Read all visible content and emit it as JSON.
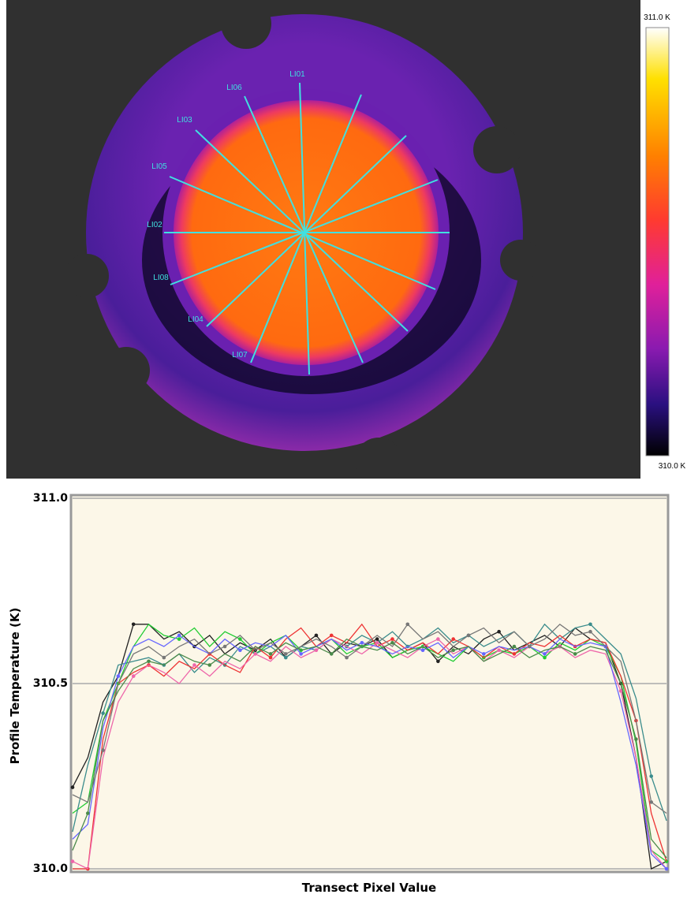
{
  "image": {
    "colorbar": {
      "max_label": "311.0 K",
      "min_label": "310.0 K"
    },
    "transect_labels": [
      "LI01",
      "LI06",
      "LI03",
      "LI05",
      "LI02",
      "LI08",
      "LI04",
      "LI07"
    ]
  },
  "chart_data": {
    "type": "line",
    "y_label": "Profile Temperature (K)",
    "x_label": "Transect Pixel Value",
    "ylim": [
      310.0,
      311.0
    ],
    "yticks": [
      {
        "value": 310.0,
        "label": "310.0"
      },
      310.5,
      {
        "value": 311.0,
        "label": "311.0"
      }
    ],
    "series": [
      {
        "color": "#222222",
        "values": [
          310.22,
          310.3,
          310.45,
          310.52,
          310.66,
          310.66,
          310.62,
          310.64,
          310.6,
          310.63,
          310.58,
          310.61,
          310.59,
          310.62,
          310.57,
          310.6,
          310.63,
          310.58,
          310.61,
          310.6,
          310.62,
          310.57,
          310.59,
          310.61,
          310.56,
          310.6,
          310.58,
          310.62,
          310.64,
          310.59,
          310.61,
          310.63,
          310.6,
          310.65,
          310.62,
          310.61,
          310.5,
          310.3,
          310.0,
          310.02
        ]
      },
      {
        "color": "#22cc33",
        "values": [
          310.15,
          310.18,
          310.4,
          310.5,
          310.6,
          310.66,
          310.63,
          310.62,
          310.65,
          310.6,
          310.64,
          310.62,
          310.58,
          310.61,
          310.63,
          310.59,
          310.6,
          310.62,
          310.58,
          310.6,
          310.61,
          310.57,
          310.59,
          310.6,
          310.58,
          310.56,
          310.6,
          310.57,
          310.59,
          310.58,
          310.6,
          310.57,
          310.61,
          310.59,
          310.62,
          310.6,
          310.52,
          310.34,
          310.05,
          310.02
        ]
      },
      {
        "color": "#3a8c8c",
        "values": [
          310.1,
          310.28,
          310.42,
          310.55,
          310.56,
          310.57,
          310.55,
          310.58,
          310.53,
          310.57,
          310.55,
          310.6,
          310.58,
          310.6,
          310.57,
          310.6,
          310.59,
          310.62,
          310.6,
          310.63,
          310.61,
          310.64,
          310.6,
          310.62,
          310.65,
          310.61,
          310.63,
          310.6,
          310.62,
          310.64,
          310.6,
          310.66,
          310.62,
          310.65,
          310.66,
          310.62,
          310.58,
          310.46,
          310.25,
          310.13
        ]
      },
      {
        "color": "#ee3333",
        "values": [
          310.0,
          310.0,
          310.35,
          310.5,
          310.53,
          310.55,
          310.52,
          310.56,
          310.54,
          310.58,
          310.55,
          310.53,
          310.6,
          310.57,
          310.62,
          310.65,
          310.6,
          310.63,
          310.61,
          310.66,
          310.6,
          310.62,
          310.59,
          310.61,
          310.58,
          310.62,
          310.6,
          310.57,
          310.6,
          310.58,
          310.61,
          310.6,
          310.63,
          310.6,
          310.62,
          310.61,
          310.52,
          310.4,
          310.15,
          310.02
        ]
      },
      {
        "color": "#ee66aa",
        "values": [
          310.02,
          310.0,
          310.3,
          310.45,
          310.52,
          310.55,
          310.53,
          310.5,
          310.55,
          310.52,
          310.56,
          310.54,
          310.58,
          310.56,
          310.6,
          310.57,
          310.59,
          310.62,
          310.6,
          310.58,
          310.61,
          310.59,
          310.57,
          310.6,
          310.62,
          310.58,
          310.6,
          310.56,
          310.59,
          310.57,
          310.6,
          310.58,
          310.6,
          310.57,
          310.59,
          310.58,
          310.48,
          310.3,
          310.05,
          310.0
        ]
      },
      {
        "color": "#6666ff",
        "values": [
          310.08,
          310.12,
          310.38,
          310.52,
          310.6,
          310.62,
          310.6,
          310.63,
          310.6,
          310.58,
          310.62,
          310.59,
          310.61,
          310.6,
          310.63,
          310.58,
          310.6,
          310.62,
          310.59,
          310.61,
          310.6,
          310.58,
          310.6,
          310.59,
          310.61,
          310.57,
          310.6,
          310.58,
          310.6,
          310.59,
          310.6,
          310.58,
          310.62,
          310.6,
          310.61,
          310.6,
          310.45,
          310.28,
          310.04,
          310.0
        ]
      },
      {
        "color": "#777777",
        "values": [
          310.2,
          310.18,
          310.32,
          310.5,
          310.58,
          310.6,
          310.57,
          310.6,
          310.62,
          310.58,
          310.6,
          310.63,
          310.59,
          310.61,
          310.58,
          310.6,
          310.62,
          310.6,
          310.57,
          310.6,
          310.63,
          310.6,
          310.66,
          310.62,
          310.64,
          310.6,
          310.63,
          310.65,
          310.61,
          310.64,
          310.6,
          310.62,
          310.66,
          310.63,
          310.64,
          310.6,
          310.56,
          310.4,
          310.18,
          310.15
        ]
      },
      {
        "color": "#4a8a4a",
        "values": [
          310.05,
          310.15,
          310.4,
          310.48,
          310.54,
          310.56,
          310.55,
          310.58,
          310.56,
          310.55,
          310.58,
          310.56,
          310.6,
          310.58,
          310.61,
          310.59,
          310.6,
          310.58,
          310.62,
          310.6,
          310.59,
          310.61,
          310.58,
          310.6,
          310.57,
          310.59,
          310.6,
          310.56,
          310.58,
          310.6,
          310.57,
          310.59,
          310.6,
          310.58,
          310.6,
          310.59,
          310.5,
          310.35,
          310.08,
          310.03
        ]
      }
    ]
  }
}
